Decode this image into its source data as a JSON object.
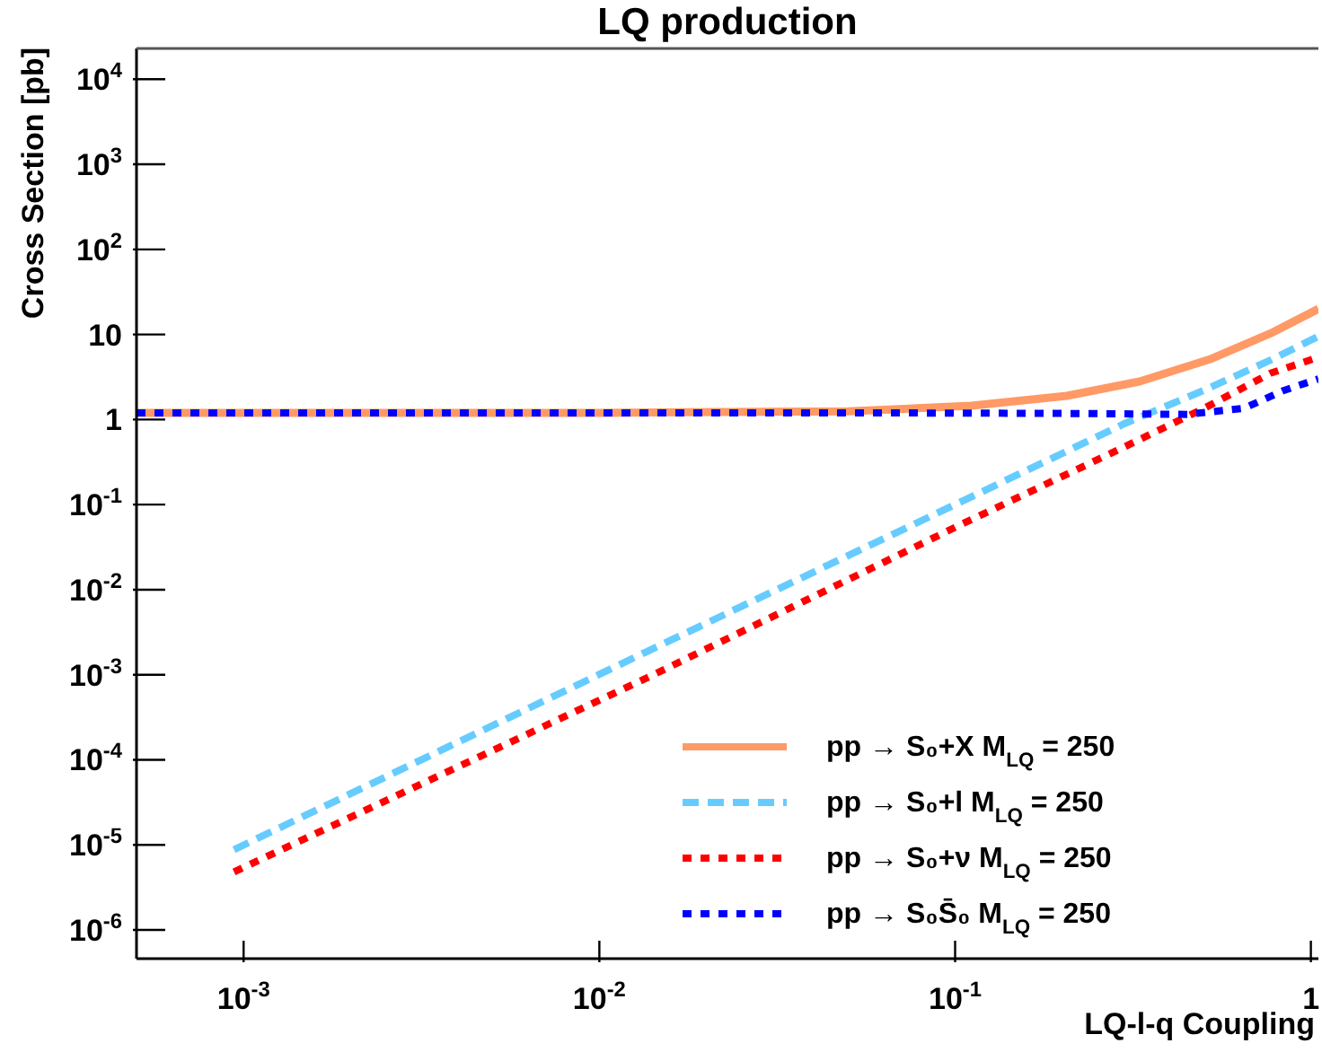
{
  "chart_data": {
    "type": "line",
    "title": "LQ production",
    "xlabel": "LQ-l-q Coupling",
    "ylabel": "Cross Section [pb]",
    "log": "xy",
    "legend": "bottom right",
    "xlim": [
      0.0005,
      1.05
    ],
    "ylim": [
      4.6e-07,
      23000
    ],
    "xticks": [
      {
        "value": 0.001,
        "label": "10$^{-3}$"
      },
      {
        "value": 0.01,
        "label": "10$^{-2}$"
      },
      {
        "value": 0.1,
        "label": "10$^{-1}$"
      },
      1
    ],
    "yticks": [
      {
        "value": 1e-06,
        "label": "10$^{-6}$"
      },
      {
        "value": 1e-05,
        "label": "10$^{-5}$"
      },
      {
        "value": 0.0001,
        "label": "10$^{-4}$"
      },
      {
        "value": 0.001,
        "label": "10$^{-3}$"
      },
      {
        "value": 0.01,
        "label": "10$^{-2}$"
      },
      {
        "value": 0.1,
        "label": "10$^{-1}$"
      },
      1,
      10,
      {
        "value": 100,
        "label": "10$^{2}$"
      },
      {
        "value": 1000,
        "label": "10$^{3}$"
      },
      {
        "value": 10000,
        "label": "10$^{4}$"
      }
    ],
    "series": [
      {
        "name": "pp → S₀+X M$_{LQ}$ = 250",
        "color": "#ff9966",
        "line_style": "solid",
        "x": [
          0.0005,
          0.01,
          0.05,
          0.111,
          0.206,
          0.33,
          0.52,
          0.77,
          1.05
        ],
        "values": [
          1.2,
          1.2,
          1.25,
          1.45,
          1.9,
          2.8,
          5.1,
          10.3,
          20
        ]
      },
      {
        "name": "pp → S₀+l M$_{LQ}$ = 250",
        "color": "#66ccff",
        "line_style": "dashed",
        "x": [
          0.00094,
          0.0137,
          0.1,
          0.3,
          0.5,
          0.77,
          1.05
        ],
        "values": [
          8.8e-06,
          0.0019,
          0.1,
          0.9,
          2.2,
          5,
          9.5
        ]
      },
      {
        "name": "pp → S₀+ν M$_{LQ}$ = 250",
        "color": "#ff0000",
        "line_style": "dotted",
        "x": [
          0.00094,
          0.0137,
          0.1,
          0.3,
          0.5,
          0.77,
          1.05
        ],
        "values": [
          4.8e-06,
          0.00093,
          0.054,
          0.48,
          1.35,
          3.5,
          5.4
        ]
      },
      {
        "name": "pp → S₀S̄₀ M$_{LQ}$ = 250",
        "color": "#0000ff",
        "line_style": "dotted",
        "x": [
          0.0005,
          0.05,
          0.2,
          0.45,
          0.65,
          0.84,
          1.05
        ],
        "values": [
          1.2,
          1.2,
          1.18,
          1.15,
          1.36,
          2.2,
          3
        ]
      }
    ]
  }
}
